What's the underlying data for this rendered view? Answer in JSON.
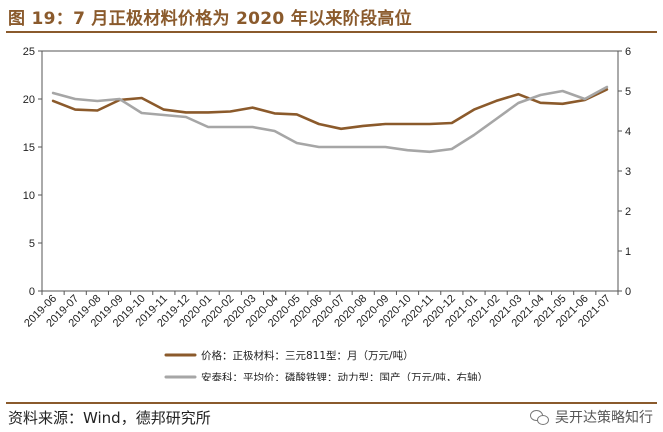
{
  "title": "图 19：7 月正极材料价格为 2020 年以来阶段高位",
  "source": "资料来源：Wind，德邦研究所",
  "watermark": "吴开达策略知行",
  "colors": {
    "accent": "#8a5a2c",
    "series1": "#8b5a2b",
    "series2": "#a6a6a6"
  },
  "chart_data": {
    "type": "line",
    "categories": [
      "2019-06",
      "2019-07",
      "2019-08",
      "2019-09",
      "2019-10",
      "2019-11",
      "2019-12",
      "2020-01",
      "2020-02",
      "2020-03",
      "2020-04",
      "2020-05",
      "2020-06",
      "2020-07",
      "2020-08",
      "2020-09",
      "2020-10",
      "2020-11",
      "2020-12",
      "2021-01",
      "2021-02",
      "2021-03",
      "2021-04",
      "2021-05",
      "2021-06",
      "2021-07"
    ],
    "ylim_left": [
      0,
      25
    ],
    "yticks_left": [
      0,
      5,
      10,
      15,
      20,
      25
    ],
    "ylim_right": [
      0,
      6
    ],
    "yticks_right": [
      0,
      1,
      2,
      3,
      4,
      5,
      6
    ],
    "grid": false,
    "legend_position": "bottom",
    "series": [
      {
        "name": "价格：正极材料：三元811型：月（万元/吨）",
        "axis": "left",
        "values": [
          19.8,
          18.9,
          18.8,
          19.9,
          20.1,
          18.9,
          18.6,
          18.6,
          18.7,
          19.1,
          18.5,
          18.4,
          17.4,
          16.9,
          17.2,
          17.4,
          17.4,
          17.4,
          17.5,
          18.9,
          19.8,
          20.5,
          19.6,
          19.5,
          19.9,
          21.0
        ]
      },
      {
        "name": "安泰科：平均价：磷酸铁锂：动力型：国产（万元/吨，右轴）",
        "axis": "right",
        "values": [
          4.95,
          4.8,
          4.75,
          4.8,
          4.45,
          4.4,
          4.35,
          4.1,
          4.1,
          4.1,
          4.0,
          3.7,
          3.6,
          3.6,
          3.6,
          3.6,
          3.52,
          3.48,
          3.55,
          3.9,
          4.3,
          4.7,
          4.9,
          5.0,
          4.8,
          5.1
        ]
      }
    ]
  }
}
